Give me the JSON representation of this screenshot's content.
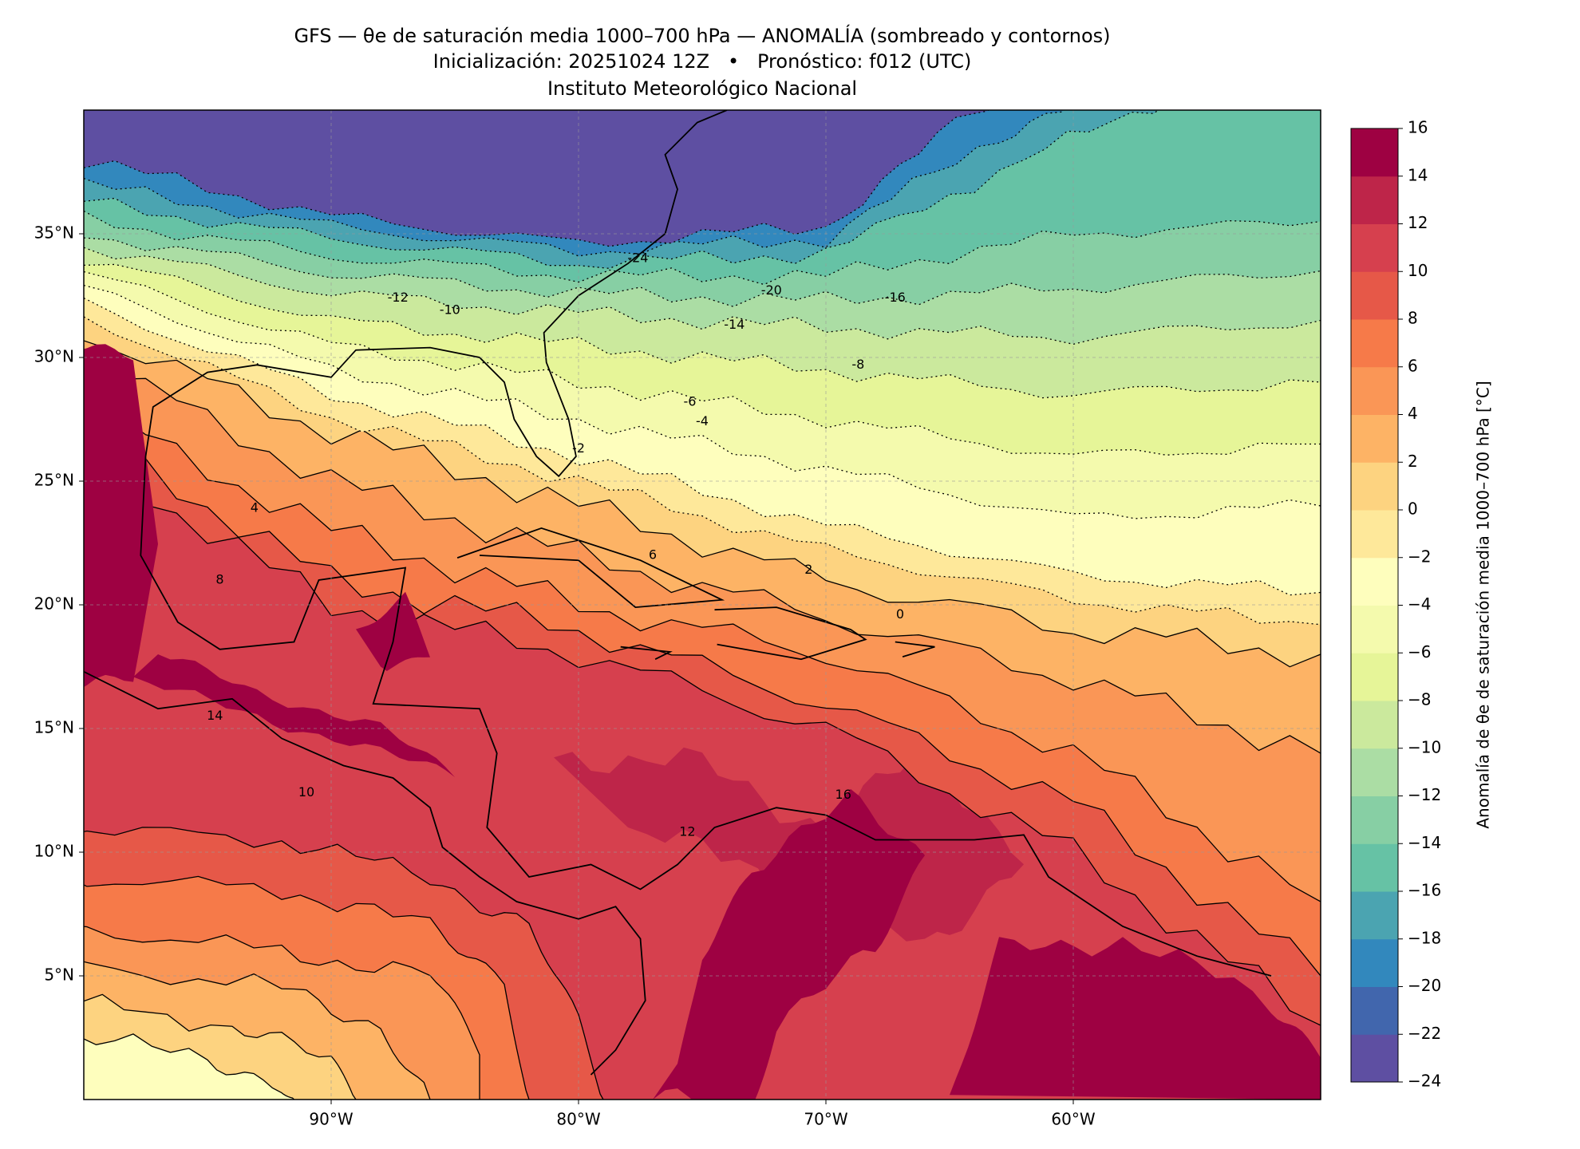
{
  "chart_data": {
    "type": "map",
    "title": "GFS — θe de saturación media 1000–700 hPa — ANOMALÍA (sombreado y contornos)",
    "subtitle": "Inicialización: 20251024 12Z   •   Pronóstico: f012 (UTC)",
    "source": "Instituto Meteorológico Nacional",
    "xlim": [
      -100,
      -50
    ],
    "ylim": [
      0,
      40
    ],
    "xticks": [
      {
        "value": -90,
        "label": "90°W"
      },
      {
        "value": -80,
        "label": "80°W"
      },
      {
        "value": -70,
        "label": "70°W"
      },
      {
        "value": -60,
        "label": "60°W"
      }
    ],
    "yticks": [
      {
        "value": 5,
        "label": "5°N"
      },
      {
        "value": 10,
        "label": "10°N"
      },
      {
        "value": 15,
        "label": "15°N"
      },
      {
        "value": 20,
        "label": "20°N"
      },
      {
        "value": 25,
        "label": "25°N"
      },
      {
        "value": 30,
        "label": "30°N"
      },
      {
        "value": 35,
        "label": "35°N"
      }
    ],
    "grid": true,
    "colorbar": {
      "label": "Anomalía de θe de saturación media 1000–700 hPa [°C]",
      "ticks": [
        {
          "value": -24,
          "label": "−24"
        },
        {
          "value": -22,
          "label": "−22"
        },
        {
          "value": -20,
          "label": "−20"
        },
        {
          "value": -18,
          "label": "−18"
        },
        {
          "value": -16,
          "label": "−16"
        },
        {
          "value": -14,
          "label": "−14"
        },
        {
          "value": -12,
          "label": "−12"
        },
        {
          "value": -10,
          "label": "−10"
        },
        {
          "value": -8,
          "label": "−8"
        },
        {
          "value": -6,
          "label": "−6"
        },
        {
          "value": -4,
          "label": "−4"
        },
        {
          "value": -2,
          "label": "−2"
        },
        0,
        2,
        4,
        6,
        8,
        10,
        12,
        14,
        16
      ],
      "colors": [
        "#5e4fa2",
        "#4166ad",
        "#3288bd",
        "#4ba4b1",
        "#66c2a5",
        "#87cfa4",
        "#abdda4",
        "#cbe99d",
        "#e6f598",
        "#f4faad",
        "#fefebd",
        "#fee89a",
        "#fdd380",
        "#fdb365",
        "#fa9656",
        "#f67a49",
        "#e65848",
        "#d6404e",
        "#be2549",
        "#9e0142"
      ]
    },
    "contour_labels": [
      -24,
      -20,
      -16,
      -14,
      -12,
      -10,
      -8,
      -6,
      -4,
      -2,
      0,
      2,
      4,
      6,
      8,
      10,
      12,
      14,
      16
    ]
  }
}
